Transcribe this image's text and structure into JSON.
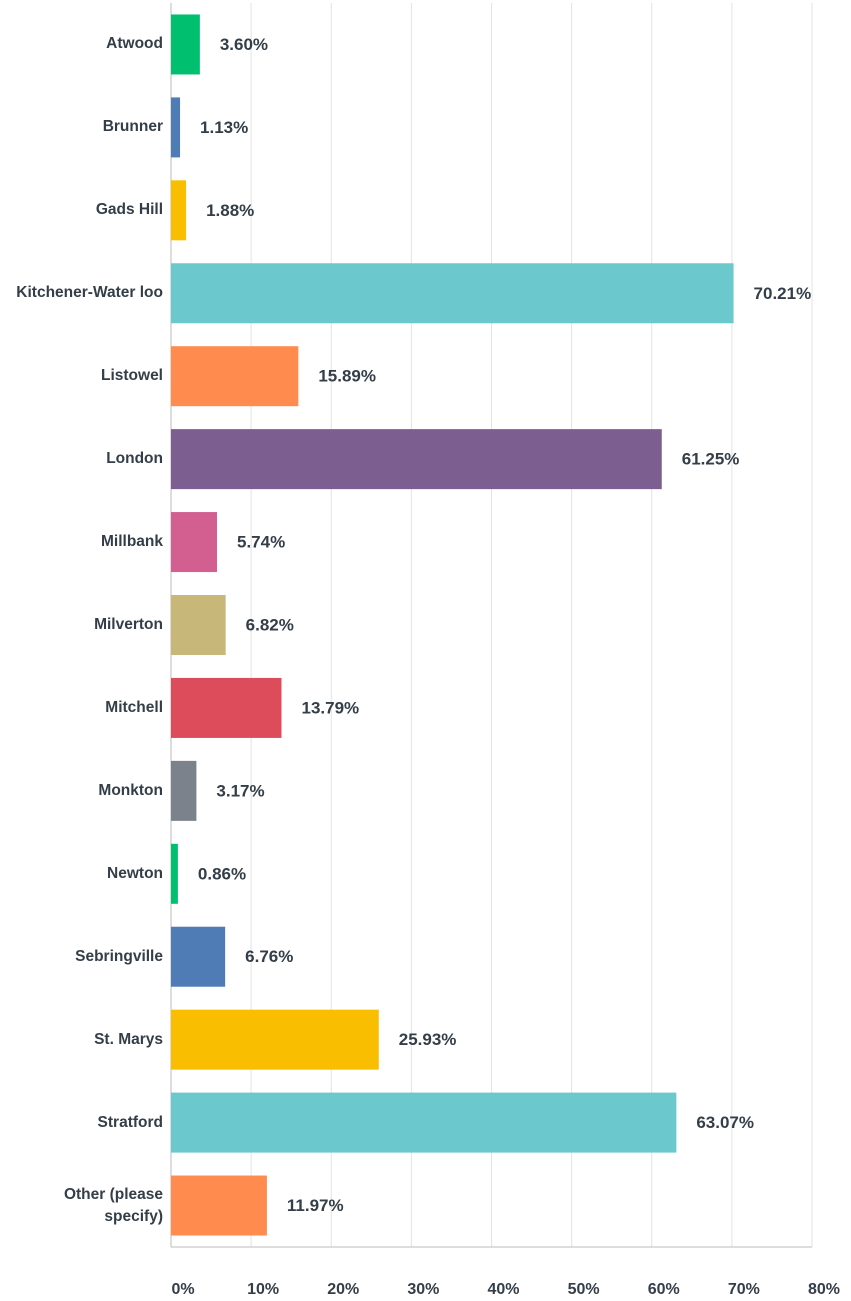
{
  "chart_data": {
    "type": "bar",
    "orientation": "horizontal",
    "categories": [
      "Atwood",
      "Brunner",
      "Gads Hill",
      "Kitchener-Water loo",
      "Listowel",
      "London",
      "Millbank",
      "Milverton",
      "Mitchell",
      "Monkton",
      "Newton",
      "Sebringville",
      "St. Marys",
      "Stratford",
      "Other (please specify)"
    ],
    "values": [
      3.6,
      1.13,
      1.88,
      70.21,
      15.89,
      61.25,
      5.74,
      6.82,
      13.79,
      3.17,
      0.86,
      6.76,
      25.93,
      63.07,
      11.97
    ],
    "value_labels": [
      "3.60%",
      "1.13%",
      "1.88%",
      "70.21%",
      "15.89%",
      "61.25%",
      "5.74%",
      "6.82%",
      "13.79%",
      "3.17%",
      "0.86%",
      "6.76%",
      "25.93%",
      "63.07%",
      "11.97%"
    ],
    "colors": [
      "#00bf6f",
      "#507cb6",
      "#f9be00",
      "#6bc8cd",
      "#ff8b4f",
      "#7d5e90",
      "#d25f90",
      "#c7b879",
      "#dd4c5a",
      "#7b828b",
      "#00bf6f",
      "#507cb6",
      "#f9be00",
      "#6bc8cd",
      "#ff8b4f"
    ],
    "xlim": [
      0,
      80
    ],
    "xticks": [
      {
        "value": 0,
        "label": "0%"
      },
      {
        "value": 10,
        "label": "10%"
      },
      {
        "value": 20,
        "label": "20%"
      },
      {
        "value": 30,
        "label": "30%"
      },
      {
        "value": 40,
        "label": "40%"
      },
      {
        "value": 50,
        "label": "50%"
      },
      {
        "value": 60,
        "label": "60%"
      },
      {
        "value": 70,
        "label": "70%"
      },
      {
        "value": 80,
        "label": "80%"
      }
    ],
    "grid": true
  }
}
